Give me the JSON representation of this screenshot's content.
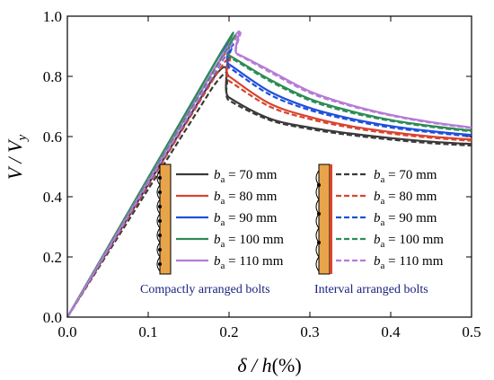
{
  "chart_data": {
    "type": "line",
    "title": "",
    "xlabel": "δ / h(%)",
    "ylabel": "V / Vy",
    "xlim": [
      0.0,
      0.5
    ],
    "ylim": [
      0.0,
      1.0
    ],
    "xticks": [
      "0.0",
      "0.1",
      "0.2",
      "0.3",
      "0.4",
      "0.5"
    ],
    "yticks": [
      "0.0",
      "0.2",
      "0.4",
      "0.6",
      "0.8",
      "1.0"
    ],
    "legend_groups": [
      {
        "caption": "Compactly arranged bolts",
        "style": "solid"
      },
      {
        "caption": "Interval arranged bolts",
        "style": "dashed"
      }
    ],
    "series": [
      {
        "name": "ba = 70 mm",
        "style": "solid",
        "color": "#3a3a3a",
        "x": [
          0,
          0.178,
          0.2,
          0.25,
          0.3,
          0.35,
          0.4,
          0.45,
          0.5
        ],
        "y": [
          0,
          0.785,
          0.73,
          0.66,
          0.63,
          0.61,
          0.595,
          0.583,
          0.575
        ]
      },
      {
        "name": "ba = 80 mm",
        "style": "solid",
        "color": "#d9442e",
        "x": [
          0,
          0.183,
          0.2,
          0.25,
          0.3,
          0.35,
          0.4,
          0.45,
          0.5
        ],
        "y": [
          0,
          0.83,
          0.8,
          0.71,
          0.665,
          0.635,
          0.615,
          0.6,
          0.59
        ]
      },
      {
        "name": "ba = 90 mm",
        "style": "solid",
        "color": "#1f4fdc",
        "x": [
          0,
          0.186,
          0.2,
          0.25,
          0.3,
          0.35,
          0.4,
          0.45,
          0.5
        ],
        "y": [
          0,
          0.86,
          0.84,
          0.75,
          0.695,
          0.66,
          0.635,
          0.618,
          0.605
        ]
      },
      {
        "name": "ba = 100 mm",
        "style": "solid",
        "color": "#2e8b57",
        "x": [
          0,
          0.19,
          0.2,
          0.25,
          0.3,
          0.35,
          0.4,
          0.45,
          0.5
        ],
        "y": [
          0,
          0.88,
          0.87,
          0.79,
          0.725,
          0.685,
          0.655,
          0.635,
          0.62
        ]
      },
      {
        "name": "ba = 110 mm",
        "style": "solid",
        "color": "#b57bd6",
        "x": [
          0,
          0.195,
          0.21,
          0.25,
          0.3,
          0.35,
          0.4,
          0.45,
          0.5
        ],
        "y": [
          0,
          0.885,
          0.875,
          0.82,
          0.75,
          0.705,
          0.672,
          0.648,
          0.63
        ]
      },
      {
        "name": "ba = 70 mm",
        "style": "dashed",
        "color": "#3a3a3a",
        "x": [
          0,
          0.18,
          0.2,
          0.25,
          0.3,
          0.35,
          0.4,
          0.45,
          0.5
        ],
        "y": [
          0,
          0.765,
          0.72,
          0.655,
          0.625,
          0.605,
          0.59,
          0.578,
          0.57
        ]
      },
      {
        "name": "ba = 80 mm",
        "style": "dashed",
        "color": "#d9442e",
        "x": [
          0,
          0.185,
          0.2,
          0.25,
          0.3,
          0.35,
          0.4,
          0.45,
          0.5
        ],
        "y": [
          0,
          0.81,
          0.785,
          0.7,
          0.658,
          0.63,
          0.61,
          0.596,
          0.586
        ]
      },
      {
        "name": "ba = 90 mm",
        "style": "dashed",
        "color": "#1f4fdc",
        "x": [
          0,
          0.19,
          0.2,
          0.25,
          0.3,
          0.35,
          0.4,
          0.45,
          0.5
        ],
        "y": [
          0,
          0.845,
          0.83,
          0.74,
          0.688,
          0.655,
          0.63,
          0.614,
          0.6
        ]
      },
      {
        "name": "ba = 100 mm",
        "style": "dashed",
        "color": "#2e8b57",
        "x": [
          0,
          0.193,
          0.2,
          0.25,
          0.3,
          0.35,
          0.4,
          0.45,
          0.5
        ],
        "y": [
          0,
          0.87,
          0.865,
          0.785,
          0.72,
          0.68,
          0.652,
          0.632,
          0.617
        ]
      },
      {
        "name": "ba = 110 mm",
        "style": "dashed",
        "color": "#b57bd6",
        "x": [
          0,
          0.197,
          0.21,
          0.25,
          0.3,
          0.35,
          0.4,
          0.45,
          0.5
        ],
        "y": [
          0,
          0.88,
          0.873,
          0.815,
          0.745,
          0.702,
          0.67,
          0.646,
          0.628
        ]
      }
    ]
  }
}
